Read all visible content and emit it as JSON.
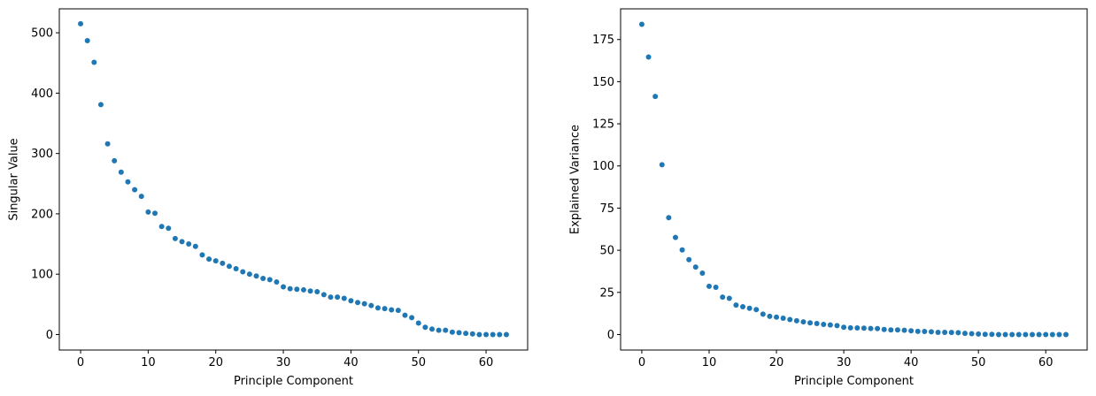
{
  "chart_data": [
    {
      "type": "scatter",
      "x_label": "Principle Component",
      "y_label": "Singular Value",
      "color": "#1f77b4",
      "x": [
        0,
        1,
        2,
        3,
        4,
        5,
        6,
        7,
        8,
        9,
        10,
        11,
        12,
        13,
        14,
        15,
        16,
        17,
        18,
        19,
        20,
        21,
        22,
        23,
        24,
        25,
        26,
        27,
        28,
        29,
        30,
        31,
        32,
        33,
        34,
        35,
        36,
        37,
        38,
        39,
        40,
        41,
        42,
        43,
        44,
        45,
        46,
        47,
        48,
        49,
        50,
        51,
        52,
        53,
        54,
        55,
        56,
        57,
        58,
        59,
        60,
        61,
        62,
        63
      ],
      "values": [
        515,
        487,
        451,
        381,
        316,
        288,
        269,
        253,
        240,
        229,
        203,
        201,
        179,
        176,
        159,
        154,
        150,
        146,
        132,
        125,
        122,
        118,
        113,
        109,
        104,
        100,
        97,
        93,
        91,
        87,
        79,
        76,
        75,
        74,
        72,
        71,
        66,
        62,
        62,
        60,
        56,
        53,
        51,
        48,
        44,
        43,
        41,
        40,
        32,
        28,
        19,
        12,
        9,
        7,
        7,
        4,
        3,
        2,
        1,
        0,
        0,
        0,
        0,
        0
      ],
      "xlim": [
        -3.15,
        66.15
      ],
      "xticks": [
        0,
        10,
        20,
        30,
        40,
        50,
        60
      ],
      "ylim": [
        -25.7,
        539.7
      ],
      "yticks": [
        0,
        100,
        200,
        300,
        400,
        500
      ]
    },
    {
      "type": "scatter",
      "x_label": "Principle Component",
      "y_label": "Explained Variance",
      "color": "#1f77b4",
      "x": [
        0,
        1,
        2,
        3,
        4,
        5,
        6,
        7,
        8,
        9,
        10,
        11,
        12,
        13,
        14,
        15,
        16,
        17,
        18,
        19,
        20,
        21,
        22,
        23,
        24,
        25,
        26,
        27,
        28,
        29,
        30,
        31,
        32,
        33,
        34,
        35,
        36,
        37,
        38,
        39,
        40,
        41,
        42,
        43,
        44,
        45,
        46,
        47,
        48,
        49,
        50,
        51,
        52,
        53,
        54,
        55,
        56,
        57,
        58,
        59,
        60,
        61,
        62,
        63
      ],
      "values": [
        184,
        164.6,
        141.2,
        100.7,
        69.3,
        57.6,
        50.2,
        44.4,
        40.0,
        36.4,
        28.6,
        28.0,
        22.2,
        21.5,
        17.5,
        16.5,
        15.6,
        14.8,
        12.1,
        10.8,
        10.3,
        9.7,
        8.9,
        8.2,
        7.5,
        6.9,
        6.5,
        6.0,
        5.7,
        5.3,
        4.3,
        4.0,
        3.9,
        3.8,
        3.6,
        3.5,
        3.0,
        2.7,
        2.7,
        2.5,
        2.2,
        1.9,
        1.8,
        1.6,
        1.3,
        1.3,
        1.2,
        1.1,
        0.7,
        0.5,
        0.3,
        0.1,
        0.1,
        0,
        0,
        0,
        0,
        0,
        0,
        0,
        0,
        0,
        0,
        0
      ],
      "xlim": [
        -3.15,
        66.15
      ],
      "xticks": [
        0,
        10,
        20,
        30,
        40,
        50,
        60
      ],
      "ylim": [
        -9.2,
        193.2
      ],
      "yticks": [
        0,
        25,
        50,
        75,
        100,
        125,
        150,
        175
      ]
    }
  ]
}
